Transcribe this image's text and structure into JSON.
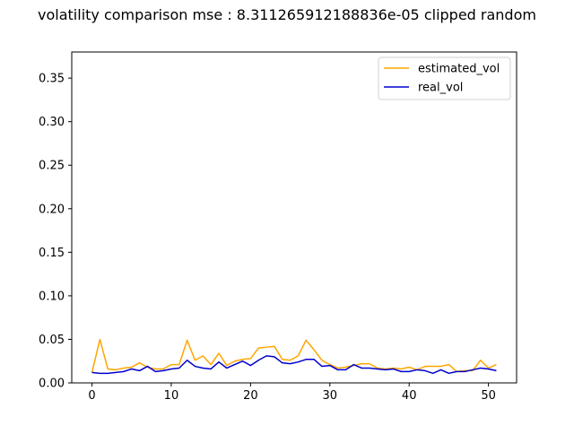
{
  "chart_data": {
    "type": "line",
    "title": "volatility comparison mse : 8.311265912188836e-05 clipped random",
    "xlabel": "",
    "ylabel": "",
    "xlim": [
      -2.55,
      53.55
    ],
    "ylim": [
      0.0,
      0.38
    ],
    "xticks": [
      0,
      10,
      20,
      30,
      40,
      50
    ],
    "xtick_labels": [
      "0",
      "10",
      "20",
      "30",
      "40",
      "50"
    ],
    "yticks": [
      0.0,
      0.05,
      0.1,
      0.15,
      0.2,
      0.25,
      0.3,
      0.35
    ],
    "ytick_labels": [
      "0.00",
      "0.05",
      "0.10",
      "0.15",
      "0.20",
      "0.25",
      "0.30",
      "0.35"
    ],
    "grid": false,
    "legend_position": "upper right",
    "x": [
      0,
      1,
      2,
      3,
      4,
      5,
      6,
      7,
      8,
      9,
      10,
      11,
      12,
      13,
      14,
      15,
      16,
      17,
      18,
      19,
      20,
      21,
      22,
      23,
      24,
      25,
      26,
      27,
      28,
      29,
      30,
      31,
      32,
      33,
      34,
      35,
      36,
      37,
      38,
      39,
      40,
      41,
      42,
      43,
      44,
      45,
      46,
      47,
      48,
      49,
      50,
      51
    ],
    "series": [
      {
        "name": "estimated_vol",
        "color": "#ffa500",
        "values": [
          0.012,
          0.05,
          0.016,
          0.015,
          0.017,
          0.018,
          0.023,
          0.018,
          0.016,
          0.016,
          0.021,
          0.021,
          0.049,
          0.026,
          0.031,
          0.021,
          0.034,
          0.02,
          0.025,
          0.027,
          0.028,
          0.04,
          0.041,
          0.042,
          0.027,
          0.026,
          0.031,
          0.049,
          0.038,
          0.026,
          0.021,
          0.017,
          0.018,
          0.02,
          0.022,
          0.022,
          0.017,
          0.016,
          0.017,
          0.016,
          0.018,
          0.015,
          0.019,
          0.019,
          0.019,
          0.021,
          0.013,
          0.014,
          0.014,
          0.026,
          0.017,
          0.021
        ]
      },
      {
        "name": "real_vol",
        "color": "#0000cd",
        "values": [
          0.012,
          0.011,
          0.011,
          0.012,
          0.013,
          0.016,
          0.014,
          0.019,
          0.013,
          0.014,
          0.016,
          0.017,
          0.026,
          0.019,
          0.017,
          0.016,
          0.024,
          0.017,
          0.021,
          0.025,
          0.02,
          0.026,
          0.031,
          0.03,
          0.023,
          0.022,
          0.024,
          0.027,
          0.027,
          0.019,
          0.02,
          0.015,
          0.015,
          0.021,
          0.017,
          0.017,
          0.016,
          0.015,
          0.016,
          0.013,
          0.013,
          0.015,
          0.014,
          0.011,
          0.015,
          0.011,
          0.013,
          0.013,
          0.015,
          0.017,
          0.016,
          0.014
        ]
      }
    ]
  }
}
